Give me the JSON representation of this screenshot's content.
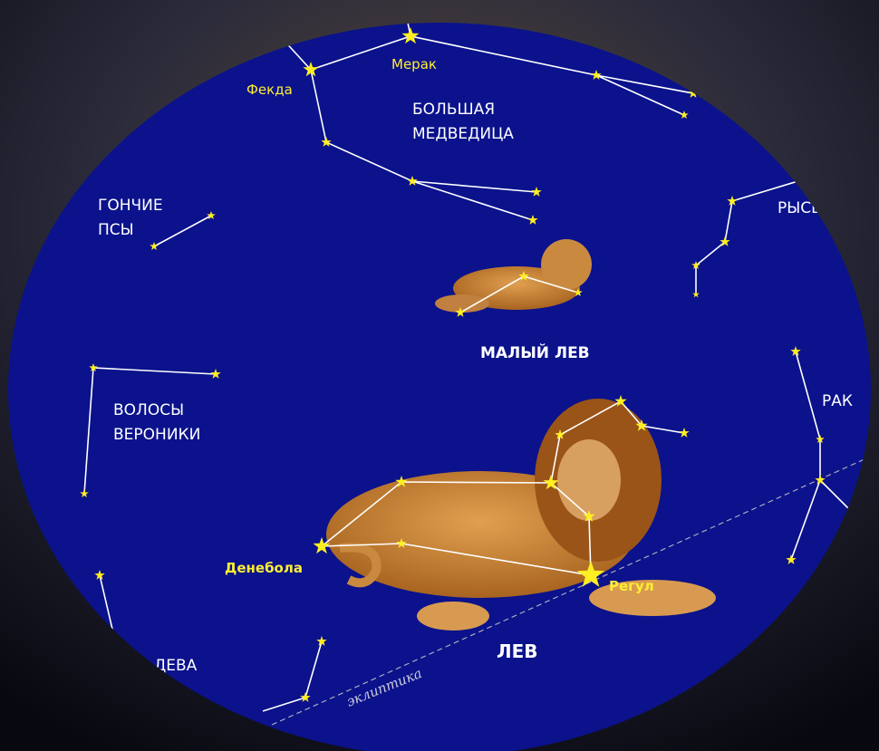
{
  "stars": {
    "merak": "Мерак",
    "phecda": "Фекда",
    "denebola": "Денебола",
    "regulus": "Регул"
  },
  "constellations": {
    "ursa_major": [
      "БОЛЬШАЯ",
      "МЕДВЕДИЦА"
    ],
    "canes_venatici": [
      "ГОНЧИЕ",
      "ПСЫ"
    ],
    "lynx": "РЫСЬ",
    "leo_minor": "МАЛЫЙ ЛЕВ",
    "coma": [
      "ВОЛОСЫ",
      "ВЕРОНИКИ"
    ],
    "cancer": "РАК",
    "leo": "ЛЕВ",
    "virgo": "ДЕВА"
  },
  "ecliptic": "эклиптика"
}
